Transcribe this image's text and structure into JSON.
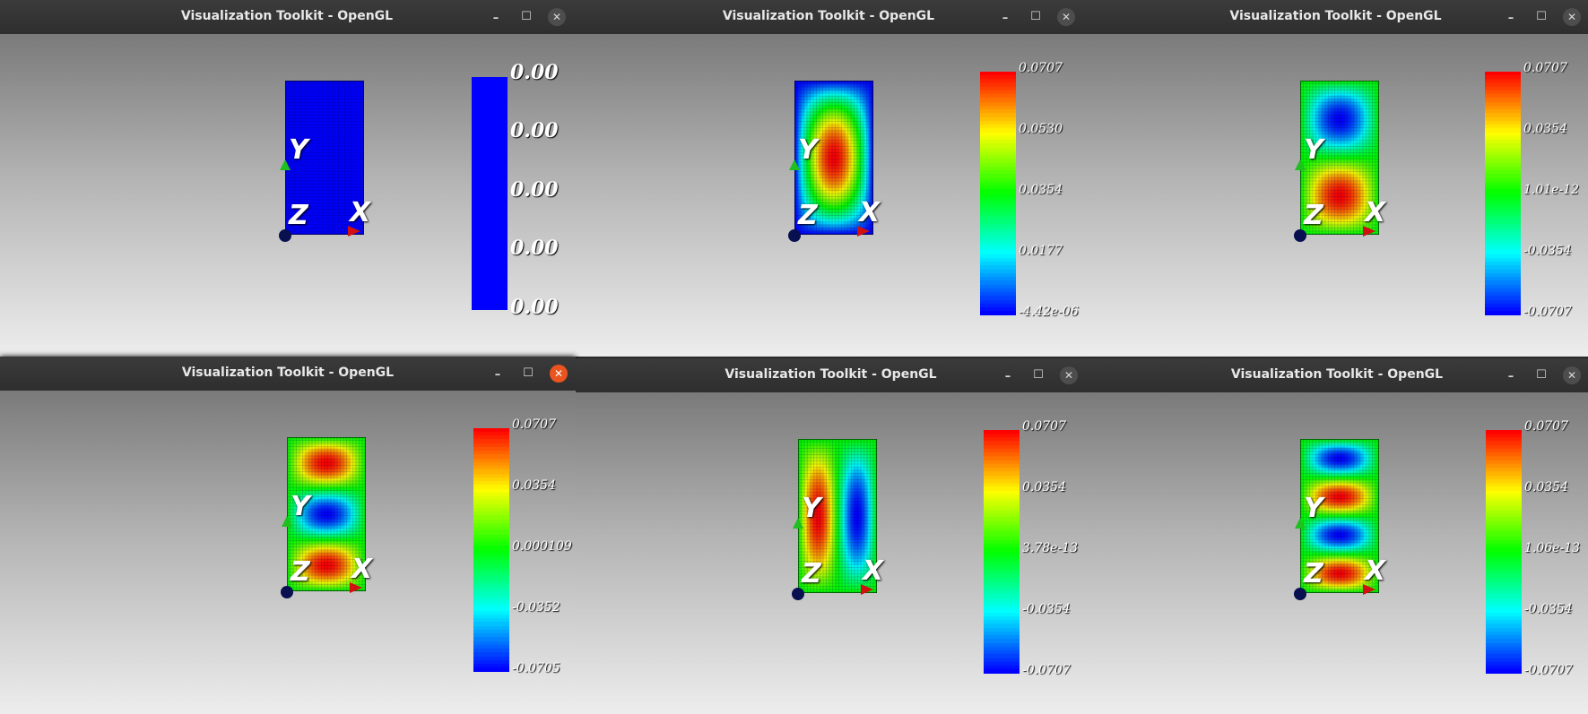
{
  "windows": [
    {
      "title": "Visualization Toolkit - OpenGL",
      "mode": "blue",
      "scale": "big",
      "close_active": false,
      "labels": [
        "0.00",
        "0.00",
        "0.00",
        "0.00",
        "0.00"
      ]
    },
    {
      "title": "Visualization Toolkit - OpenGL",
      "mode": "m1",
      "scale": "jet",
      "close_active": false,
      "labels": [
        "0.0707",
        "0.0530",
        "0.0354",
        "0.0177",
        "-4.42e-06"
      ]
    },
    {
      "title": "Visualization Toolkit - OpenGL",
      "mode": "m2",
      "scale": "jet",
      "close_active": false,
      "labels": [
        "0.0707",
        "0.0354",
        "1.01e-12",
        "-0.0354",
        "-0.0707"
      ]
    },
    {
      "title": "Visualization Toolkit - OpenGL",
      "mode": "m3",
      "scale": "jet",
      "close_active": true,
      "labels": [
        "0.0707",
        "0.0354",
        "0.000109",
        "-0.0352",
        "-0.0705"
      ]
    },
    {
      "title": "Visualization Toolkit - OpenGL",
      "mode": "m4",
      "scale": "jet",
      "close_active": false,
      "labels": [
        "0.0707",
        "0.0354",
        "3.78e-13",
        "-0.0354",
        "-0.0707"
      ]
    },
    {
      "title": "Visualization Toolkit - OpenGL",
      "mode": "m5",
      "scale": "jet",
      "close_active": false,
      "labels": [
        "0.0707",
        "0.0354",
        "1.06e-13",
        "-0.0354",
        "-0.0707"
      ]
    }
  ],
  "axes": {
    "x": "X",
    "y": "Y",
    "z": "Z"
  },
  "controls": {
    "minimize": "–",
    "maximize": "☐",
    "close": "✕"
  },
  "colors": {
    "blue": "#0000ff",
    "titlebar": "#2e2e2e",
    "close_active": "#e9541f"
  }
}
